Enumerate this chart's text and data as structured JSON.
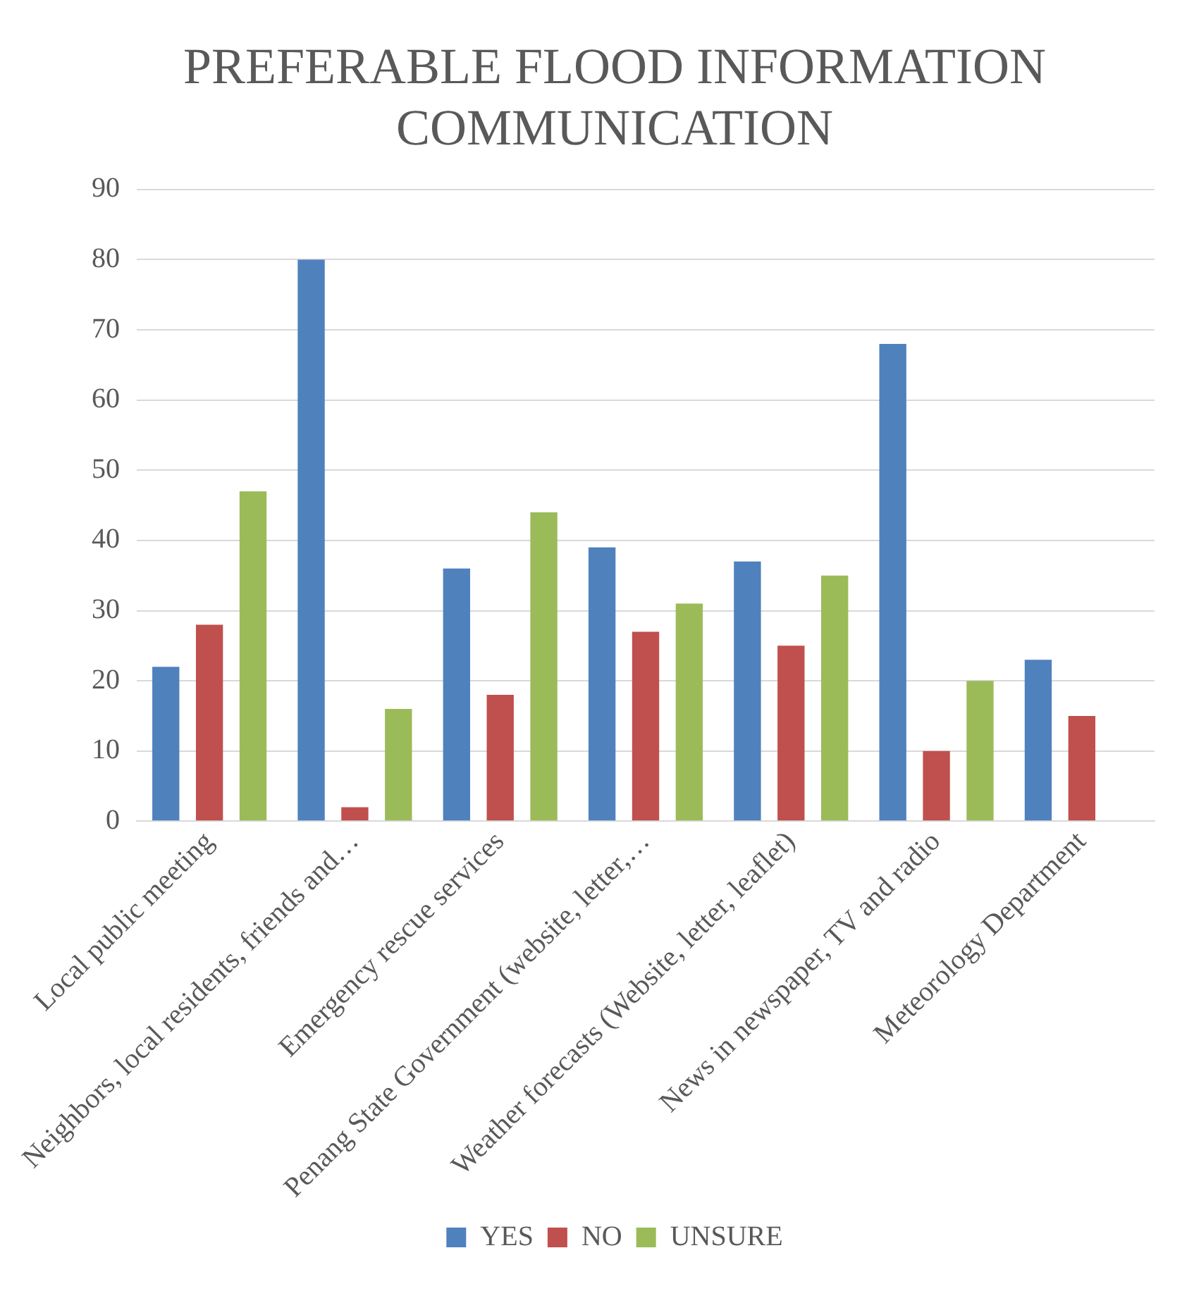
{
  "chart_data": {
    "type": "bar",
    "title": "PREFERABLE FLOOD INFORMATION COMMUNICATION",
    "categories": [
      "Local public meeting",
      "Neighbors, local residents, friends and…",
      "Emergency rescue services",
      "Penang State Government (website, letter,…",
      "Weather forecasts (Website, letter, leaflet)",
      "News in newspaper, TV and radio",
      "Meteorology Department"
    ],
    "series": [
      {
        "name": "YES",
        "color": "#4f81bd",
        "values": [
          22,
          80,
          36,
          39,
          37,
          68,
          23
        ]
      },
      {
        "name": "NO",
        "color": "#c0504d",
        "values": [
          28,
          2,
          18,
          27,
          25,
          10,
          15
        ]
      },
      {
        "name": "UNSURE",
        "color": "#9bbb59",
        "values": [
          47,
          16,
          44,
          31,
          35,
          20,
          null
        ]
      }
    ],
    "ylim": [
      0,
      90
    ],
    "yticks": [
      0,
      10,
      20,
      30,
      40,
      50,
      60,
      70,
      80,
      90
    ],
    "grid": "y",
    "legend": "bottom"
  }
}
